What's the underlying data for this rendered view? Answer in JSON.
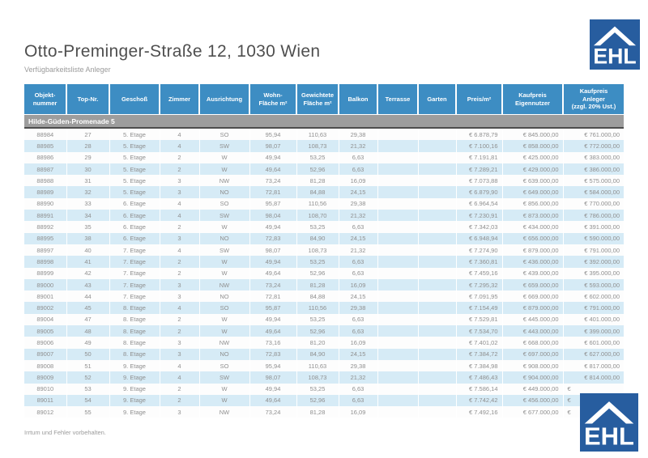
{
  "header": {
    "title": "Otto-Preminger-Straße 12, 1030 Wien",
    "subtitle": "Verfügbarkeitsliste Anleger"
  },
  "logo": {
    "text": "EHL"
  },
  "colors": {
    "header_blue": "#3d8dc3",
    "row_alt_blue": "#d6ebf6",
    "section_gray": "#9d9d9d",
    "logo_blue": "#275d9f"
  },
  "table": {
    "columns": [
      "Objekt-\nnummer",
      "Top-Nr.",
      "Geschoß",
      "Zimmer",
      "Ausrichtung",
      "Wohn-\nFläche m²",
      "Gewichtete\nFläche m²",
      "Balkon",
      "Terrasse",
      "Garten",
      "Preis/m²",
      "Kaufpreis\nEigennutzer",
      "Kaufpreis\nAnleger\n(zzgl. 20% Ust.)"
    ],
    "section": "Hilde-Güden-Promenade 5",
    "rows": [
      [
        "88984",
        "27",
        "5. Etage",
        "4",
        "SO",
        "95,94",
        "110,63",
        "29,38",
        "",
        "",
        "€ 6.878,79",
        "€ 845.000,00",
        "€ 761.000,00"
      ],
      [
        "88985",
        "28",
        "5. Etage",
        "4",
        "SW",
        "98,07",
        "108,73",
        "21,32",
        "",
        "",
        "€ 7.100,16",
        "€ 858.000,00",
        "€ 772.000,00"
      ],
      [
        "88986",
        "29",
        "5. Etage",
        "2",
        "W",
        "49,94",
        "53,25",
        "6,63",
        "",
        "",
        "€ 7.191,81",
        "€ 425.000,00",
        "€ 383.000,00"
      ],
      [
        "88987",
        "30",
        "5. Etage",
        "2",
        "W",
        "49,64",
        "52,96",
        "6,63",
        "",
        "",
        "€ 7.289,21",
        "€ 429.000,00",
        "€ 386.000,00"
      ],
      [
        "88988",
        "31",
        "5. Etage",
        "3",
        "NW",
        "73,24",
        "81,28",
        "16,09",
        "",
        "",
        "€ 7.073,88",
        "€ 639.000,00",
        "€ 575.000,00"
      ],
      [
        "88989",
        "32",
        "5. Etage",
        "3",
        "NO",
        "72,81",
        "84,88",
        "24,15",
        "",
        "",
        "€ 6.879,90",
        "€ 649.000,00",
        "€ 584.000,00"
      ],
      [
        "88990",
        "33",
        "6. Etage",
        "4",
        "SO",
        "95,87",
        "110,56",
        "29,38",
        "",
        "",
        "€ 6.964,54",
        "€ 856.000,00",
        "€ 770.000,00"
      ],
      [
        "88991",
        "34",
        "6. Etage",
        "4",
        "SW",
        "98,04",
        "108,70",
        "21,32",
        "",
        "",
        "€ 7.230,91",
        "€ 873.000,00",
        "€ 786.000,00"
      ],
      [
        "88992",
        "35",
        "6. Etage",
        "2",
        "W",
        "49,94",
        "53,25",
        "6,63",
        "",
        "",
        "€ 7.342,03",
        "€ 434.000,00",
        "€ 391.000,00"
      ],
      [
        "88995",
        "38",
        "6. Etage",
        "3",
        "NO",
        "72,83",
        "84,90",
        "24,15",
        "",
        "",
        "€ 6.948,94",
        "€ 656.000,00",
        "€ 590.000,00"
      ],
      [
        "88997",
        "40",
        "7. Etage",
        "4",
        "SW",
        "98,07",
        "108,73",
        "21,32",
        "",
        "",
        "€ 7.274,90",
        "€ 879.000,00",
        "€ 791.000,00"
      ],
      [
        "88998",
        "41",
        "7. Etage",
        "2",
        "W",
        "49,94",
        "53,25",
        "6,63",
        "",
        "",
        "€ 7.360,81",
        "€ 436.000,00",
        "€ 392.000,00"
      ],
      [
        "88999",
        "42",
        "7. Etage",
        "2",
        "W",
        "49,64",
        "52,96",
        "6,63",
        "",
        "",
        "€ 7.459,16",
        "€ 439.000,00",
        "€ 395.000,00"
      ],
      [
        "89000",
        "43",
        "7. Etage",
        "3",
        "NW",
        "73,24",
        "81,28",
        "16,09",
        "",
        "",
        "€ 7.295,32",
        "€ 659.000,00",
        "€ 593.000,00"
      ],
      [
        "89001",
        "44",
        "7. Etage",
        "3",
        "NO",
        "72,81",
        "84,88",
        "24,15",
        "",
        "",
        "€ 7.091,95",
        "€ 669.000,00",
        "€ 602.000,00"
      ],
      [
        "89002",
        "45",
        "8. Etage",
        "4",
        "SO",
        "95,87",
        "110,56",
        "29,38",
        "",
        "",
        "€ 7.154,49",
        "€ 879.000,00",
        "€ 791.000,00"
      ],
      [
        "89004",
        "47",
        "8. Etage",
        "2",
        "W",
        "49,94",
        "53,25",
        "6,63",
        "",
        "",
        "€ 7.529,81",
        "€ 445.000,00",
        "€ 401.000,00"
      ],
      [
        "89005",
        "48",
        "8. Etage",
        "2",
        "W",
        "49,64",
        "52,96",
        "6,63",
        "",
        "",
        "€ 7.534,70",
        "€ 443.000,00",
        "€ 399.000,00"
      ],
      [
        "89006",
        "49",
        "8. Etage",
        "3",
        "NW",
        "73,16",
        "81,20",
        "16,09",
        "",
        "",
        "€ 7.401,02",
        "€ 668.000,00",
        "€ 601.000,00"
      ],
      [
        "89007",
        "50",
        "8. Etage",
        "3",
        "NO",
        "72,83",
        "84,90",
        "24,15",
        "",
        "",
        "€ 7.384,72",
        "€ 697.000,00",
        "€ 627.000,00"
      ],
      [
        "89008",
        "51",
        "9. Etage",
        "4",
        "SO",
        "95,94",
        "110,63",
        "29,38",
        "",
        "",
        "€ 7.384,98",
        "€ 908.000,00",
        "€ 817.000,00"
      ],
      [
        "89009",
        "52",
        "9. Etage",
        "4",
        "SW",
        "98,07",
        "108,73",
        "21,32",
        "",
        "",
        "€ 7.486,43",
        "€ 904.000,00",
        "€ 814.000,00"
      ],
      [
        "89010",
        "53",
        "9. Etage",
        "2",
        "W",
        "49,94",
        "53,25",
        "6,63",
        "",
        "",
        "€ 7.586,14",
        "€ 449.000,00",
        "€"
      ],
      [
        "89011",
        "54",
        "9. Etage",
        "2",
        "W",
        "49,64",
        "52,96",
        "6,63",
        "",
        "",
        "€ 7.742,42",
        "€ 456.000,00",
        "€"
      ],
      [
        "89012",
        "55",
        "9. Etage",
        "3",
        "NW",
        "73,24",
        "81,28",
        "16,09",
        "",
        "",
        "€ 7.492,16",
        "€ 677.000,00",
        "€"
      ]
    ],
    "cut_rows": [
      22,
      23,
      24
    ]
  },
  "footer": {
    "disclaimer": "Irrtum und Fehler vorbehalten."
  }
}
